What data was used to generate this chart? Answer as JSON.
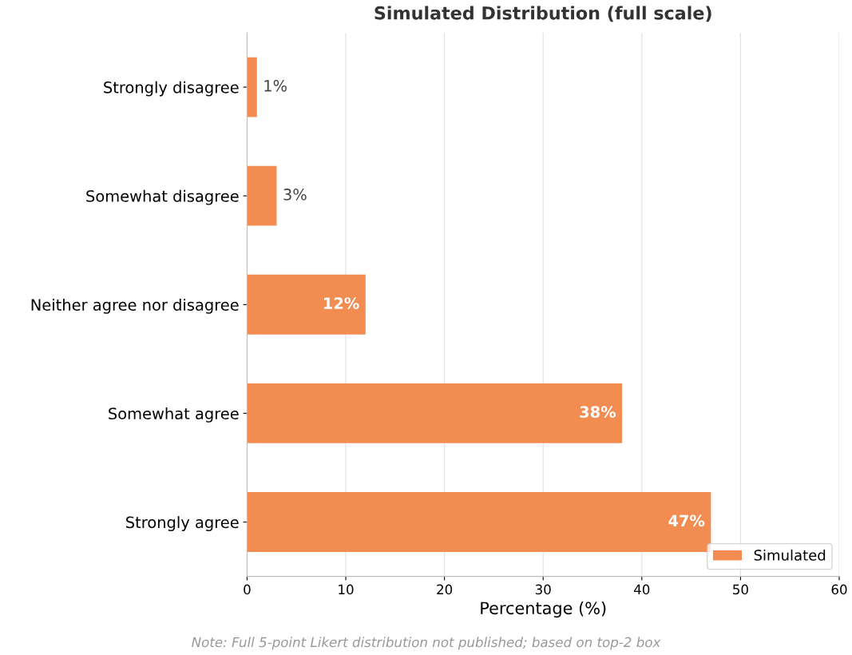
{
  "chart_data": {
    "type": "bar",
    "orientation": "horizontal",
    "title": "Simulated Distribution (full scale)",
    "xlabel": "Percentage (%)",
    "categories": [
      "Strongly disagree",
      "Somewhat disagree",
      "Neither agree nor disagree",
      "Somewhat agree",
      "Strongly agree"
    ],
    "series": [
      {
        "name": "Simulated",
        "color": "#f28c51",
        "values": [
          1,
          3,
          12,
          38,
          47
        ],
        "value_labels": [
          "1%",
          "3%",
          "12%",
          "38%",
          "47%"
        ]
      }
    ],
    "xlim": [
      0,
      60
    ],
    "xticks": [
      0,
      10,
      20,
      30,
      40,
      50,
      60
    ],
    "grid": "x",
    "legend": "bottom right",
    "annotations": [
      "Note: Full 5-point Likert distribution not published; based on top-2 box"
    ]
  }
}
